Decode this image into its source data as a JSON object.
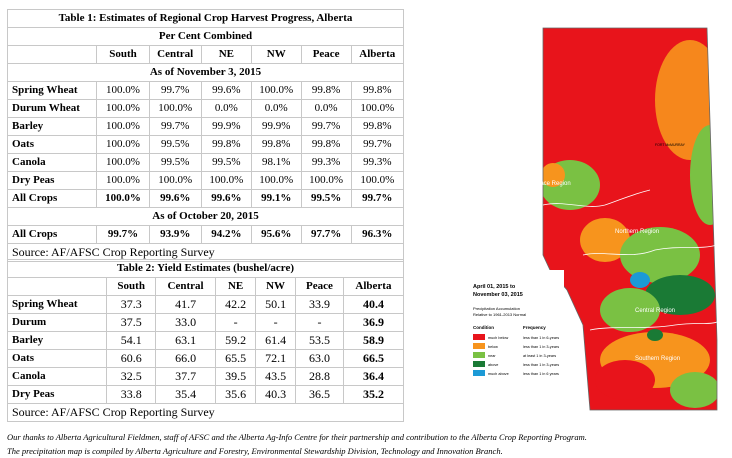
{
  "table1": {
    "title": "Table 1: Estimates of Regional Crop Harvest Progress, Alberta",
    "subtitle": "Per Cent Combined",
    "columns": [
      "South",
      "Central",
      "NE",
      "NW",
      "Peace",
      "Alberta"
    ],
    "section1": "As of November 3, 2015",
    "rows": [
      {
        "label": "Spring Wheat",
        "values": [
          "100.0%",
          "99.7%",
          "99.6%",
          "100.0%",
          "99.8%",
          "99.8%"
        ]
      },
      {
        "label": "Durum Wheat",
        "values": [
          "100.0%",
          "100.0%",
          "0.0%",
          "0.0%",
          "0.0%",
          "100.0%"
        ]
      },
      {
        "label": "Barley",
        "values": [
          "100.0%",
          "99.7%",
          "99.9%",
          "99.9%",
          "99.7%",
          "99.8%"
        ]
      },
      {
        "label": "Oats",
        "values": [
          "100.0%",
          "99.5%",
          "99.8%",
          "99.8%",
          "99.8%",
          "99.7%"
        ]
      },
      {
        "label": "Canola",
        "values": [
          "100.0%",
          "99.5%",
          "99.5%",
          "98.1%",
          "99.3%",
          "99.3%"
        ]
      },
      {
        "label": "Dry Peas",
        "values": [
          "100.0%",
          "100.0%",
          "100.0%",
          "100.0%",
          "100.0%",
          "100.0%"
        ]
      },
      {
        "label": "All Crops",
        "values": [
          "100.0%",
          "99.6%",
          "99.6%",
          "99.1%",
          "99.5%",
          "99.7%"
        ]
      }
    ],
    "section2": "As of October 20, 2015",
    "prev_row": {
      "label": "All Crops",
      "values": [
        "99.7%",
        "93.9%",
        "94.2%",
        "95.6%",
        "97.7%",
        "96.3%"
      ]
    },
    "source": "Source: AF/AFSC Crop Reporting Survey"
  },
  "table2": {
    "title": "Table 2: Yield Estimates (bushel/acre)",
    "columns": [
      "South",
      "Central",
      "NE",
      "NW",
      "Peace",
      "Alberta"
    ],
    "rows": [
      {
        "label": "Spring Wheat",
        "values": [
          "37.3",
          "41.7",
          "42.2",
          "50.1",
          "33.9",
          "40.4"
        ]
      },
      {
        "label": "Durum",
        "values": [
          "37.5",
          "33.0",
          "-",
          "-",
          "-",
          "36.9"
        ]
      },
      {
        "label": "Barley",
        "values": [
          "54.1",
          "63.1",
          "59.2",
          "61.4",
          "53.5",
          "58.9"
        ]
      },
      {
        "label": "Oats",
        "values": [
          "60.6",
          "66.0",
          "65.5",
          "72.1",
          "63.0",
          "66.5"
        ]
      },
      {
        "label": "Canola",
        "values": [
          "32.5",
          "37.7",
          "39.5",
          "43.5",
          "28.8",
          "36.4"
        ]
      },
      {
        "label": "Dry Peas",
        "values": [
          "33.8",
          "35.4",
          "35.6",
          "40.3",
          "36.5",
          "35.2"
        ]
      }
    ],
    "source": "Source: AF/AFSC Crop Reporting Survey"
  },
  "footer": {
    "line1": "Our thanks to Alberta Agricultural Fieldmen, staff of AFSC and the Alberta Ag-Info Centre for their partnership and contribution to the Alberta Crop Reporting Program.",
    "line2": "The precipitation map is compiled by Alberta Agriculture and Forestry, Environmental Stewardship Division, Technology and Innovation Branch."
  },
  "map": {
    "regions": {
      "peace": "Peace Region",
      "northern": "Northern Region",
      "central": "Central Region",
      "southern": "Southern Region"
    },
    "place": "FORT McMURRAY",
    "legend": {
      "date1": "April 01, 2015 to",
      "date2": "November 03, 2015",
      "desc1": "Precipitation Accumulation",
      "desc2": "Relative to 1961-2013 Normal",
      "h_condition": "Condition",
      "h_frequency": "Frequency",
      "items": [
        {
          "condition": "much below",
          "frequency": "less than 1 in 6-years",
          "color": "#e8141b"
        },
        {
          "condition": "below",
          "frequency": "less than 1 in 3-years",
          "color": "#f7941d"
        },
        {
          "condition": "near",
          "frequency": "at least 1 in 3-years",
          "color": "#7ac143"
        },
        {
          "condition": "above",
          "frequency": "less than 1 in 3-years",
          "color": "#1a7a35"
        },
        {
          "condition": "much above",
          "frequency": "less than 1 in 6 years",
          "color": "#1c9ad6"
        }
      ]
    }
  }
}
